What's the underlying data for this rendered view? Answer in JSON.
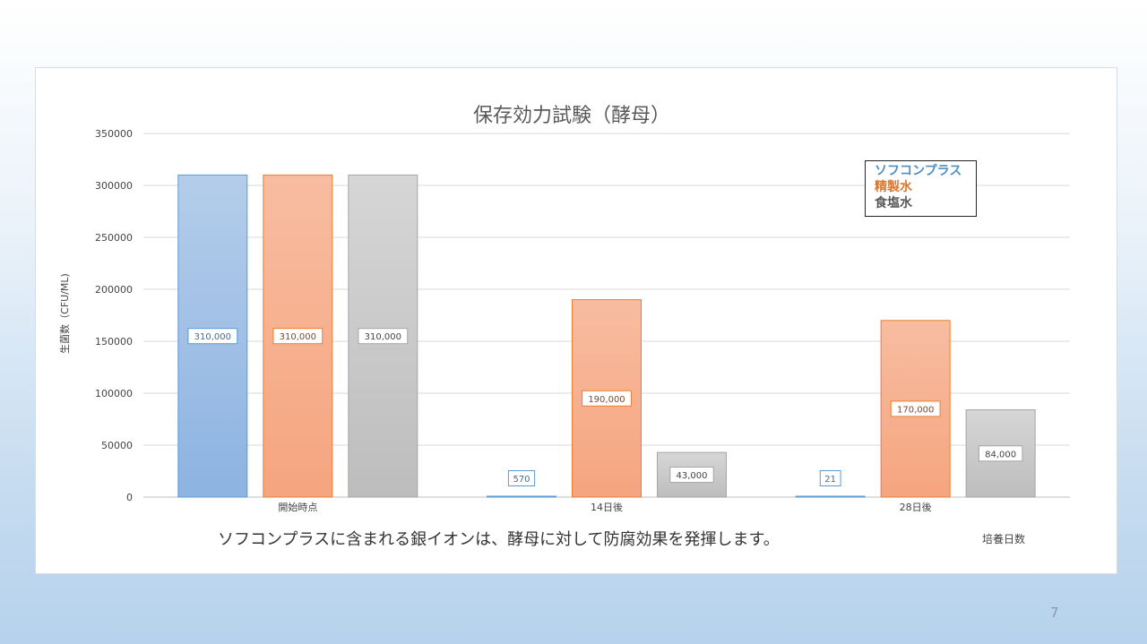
{
  "chart_data": {
    "type": "bar",
    "title": "保存効力試験（酵母）",
    "ylabel": "生菌数（CFU/ML)",
    "xlabel": "培養日数",
    "ylim": [
      0,
      350000
    ],
    "yticks": [
      "0",
      "50000",
      "100000",
      "150000",
      "200000",
      "250000",
      "300000",
      "350000"
    ],
    "categories": [
      "開始時点",
      "14日後",
      "28日後"
    ],
    "series": [
      {
        "name": "ソフコンプラス",
        "values": [
          310000,
          570,
          21
        ],
        "labels": [
          "310,000",
          "570",
          "21"
        ],
        "color": "#5b9bd5"
      },
      {
        "name": "精製水",
        "values": [
          310000,
          190000,
          170000
        ],
        "labels": [
          "310,000",
          "190,000",
          "170,000"
        ],
        "color": "#ed7d31"
      },
      {
        "name": "食塩水",
        "values": [
          310000,
          43000,
          84000
        ],
        "labels": [
          "310,000",
          "43,000",
          "84,000"
        ],
        "color": "#a5a5a5"
      }
    ],
    "grid": true,
    "legend_position": "top-right"
  },
  "caption": "ソフコンプラスに含まれる銀イオンは、酵母に対して防腐効果を発揮します。",
  "page_number": "7"
}
